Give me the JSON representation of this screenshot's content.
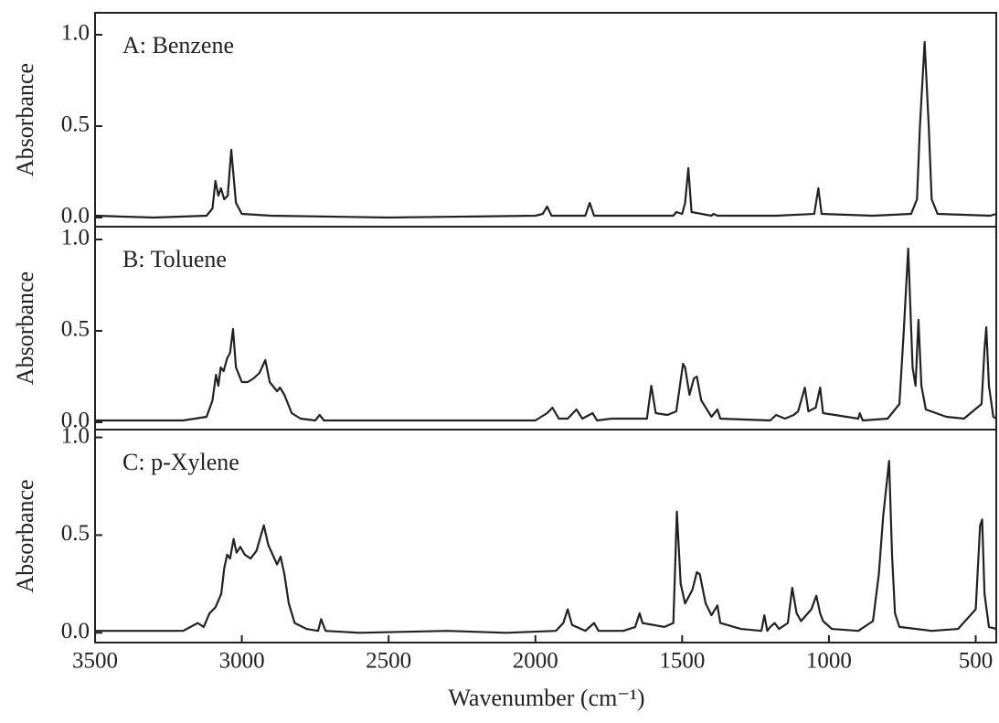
{
  "x_label": "Wavenumber (cm⁻¹)",
  "chart_data": [
    {
      "type": "line",
      "annotation": "A: Benzene",
      "y_label": "Absorbance",
      "color": "#222222",
      "xlim": [
        3500,
        430
      ],
      "ylim": [
        -0.05,
        1.12
      ],
      "yticks": [
        {
          "value": 0,
          "label": "0.0"
        },
        0.5,
        {
          "value": 1,
          "label": "1.0"
        }
      ],
      "x": [
        3500,
        3300,
        3120,
        3100,
        3090,
        3080,
        3071,
        3060,
        3048,
        3036,
        3020,
        3000,
        2900,
        2500,
        2000,
        1975,
        1960,
        1945,
        1830,
        1815,
        1800,
        1530,
        1520,
        1500,
        1490,
        1479,
        1468,
        1400,
        1393,
        1380,
        1180,
        1050,
        1036,
        1025,
        850,
        720,
        700,
        690,
        674,
        660,
        650,
        630,
        450,
        430
      ],
      "values": [
        0.01,
        0.0,
        0.01,
        0.05,
        0.2,
        0.12,
        0.16,
        0.1,
        0.12,
        0.37,
        0.08,
        0.02,
        0.01,
        0.0,
        0.01,
        0.02,
        0.06,
        0.01,
        0.01,
        0.08,
        0.01,
        0.01,
        0.03,
        0.02,
        0.08,
        0.27,
        0.03,
        0.01,
        0.02,
        0.01,
        0.01,
        0.02,
        0.16,
        0.02,
        0.01,
        0.02,
        0.1,
        0.5,
        0.96,
        0.5,
        0.1,
        0.02,
        0.01,
        0.02
      ]
    },
    {
      "type": "line",
      "annotation": "B: Toluene",
      "y_label": "Absorbance",
      "color": "#222222",
      "xlim": [
        3500,
        430
      ],
      "ylim": [
        -0.04,
        1.07
      ],
      "yticks": [
        {
          "value": 0,
          "label": "0.0"
        },
        0.5,
        {
          "value": 1,
          "label": "1.0"
        }
      ],
      "x": [
        3500,
        3200,
        3120,
        3100,
        3088,
        3080,
        3072,
        3062,
        3050,
        3040,
        3030,
        3020,
        3000,
        2980,
        2960,
        2940,
        2920,
        2905,
        2880,
        2870,
        2855,
        2830,
        2800,
        2750,
        2735,
        2720,
        2000,
        1960,
        1942,
        1920,
        1890,
        1860,
        1840,
        1805,
        1790,
        1740,
        1620,
        1605,
        1590,
        1550,
        1520,
        1497,
        1490,
        1475,
        1460,
        1450,
        1435,
        1400,
        1380,
        1370,
        1200,
        1180,
        1150,
        1120,
        1105,
        1082,
        1070,
        1045,
        1030,
        1020,
        900,
        895,
        885,
        800,
        760,
        745,
        730,
        715,
        705,
        695,
        685,
        670,
        600,
        540,
        480,
        470,
        464,
        455,
        440,
        430
      ],
      "values": [
        0.01,
        0.01,
        0.03,
        0.12,
        0.26,
        0.2,
        0.3,
        0.28,
        0.35,
        0.38,
        0.51,
        0.3,
        0.22,
        0.22,
        0.24,
        0.27,
        0.34,
        0.22,
        0.17,
        0.19,
        0.15,
        0.05,
        0.02,
        0.01,
        0.04,
        0.01,
        0.01,
        0.05,
        0.08,
        0.02,
        0.02,
        0.07,
        0.02,
        0.05,
        0.01,
        0.02,
        0.02,
        0.2,
        0.05,
        0.04,
        0.06,
        0.32,
        0.3,
        0.15,
        0.24,
        0.25,
        0.12,
        0.03,
        0.07,
        0.02,
        0.01,
        0.04,
        0.02,
        0.04,
        0.06,
        0.19,
        0.06,
        0.08,
        0.19,
        0.05,
        0.02,
        0.05,
        0.01,
        0.02,
        0.1,
        0.5,
        0.95,
        0.3,
        0.2,
        0.56,
        0.2,
        0.07,
        0.03,
        0.02,
        0.1,
        0.4,
        0.52,
        0.2,
        0.03,
        0.02
      ]
    },
    {
      "type": "line",
      "annotation": "C: p-Xylene",
      "y_label": "Absorbance",
      "color": "#222222",
      "xlim": [
        3500,
        430
      ],
      "ylim": [
        -0.05,
        1.04
      ],
      "xticks": [
        3500,
        3000,
        2500,
        2000,
        1500,
        1000,
        500
      ],
      "yticks": [
        {
          "value": 0,
          "label": "0.0"
        },
        0.5,
        {
          "value": 1,
          "label": "1.0"
        }
      ],
      "x": [
        3500,
        3200,
        3150,
        3130,
        3110,
        3090,
        3070,
        3060,
        3050,
        3040,
        3028,
        3018,
        3005,
        2990,
        2970,
        2950,
        2925,
        2910,
        2880,
        2868,
        2855,
        2840,
        2820,
        2780,
        2740,
        2730,
        2715,
        2600,
        2300,
        2100,
        1930,
        1905,
        1890,
        1875,
        1830,
        1800,
        1785,
        1700,
        1660,
        1645,
        1635,
        1560,
        1530,
        1518,
        1505,
        1490,
        1465,
        1450,
        1440,
        1420,
        1400,
        1380,
        1370,
        1300,
        1230,
        1220,
        1210,
        1200,
        1185,
        1170,
        1140,
        1125,
        1110,
        1095,
        1060,
        1043,
        1030,
        1020,
        990,
        900,
        850,
        830,
        815,
        795,
        785,
        775,
        760,
        650,
        560,
        500,
        485,
        478,
        470,
        455,
        430
      ],
      "values": [
        0.01,
        0.01,
        0.05,
        0.03,
        0.1,
        0.13,
        0.2,
        0.33,
        0.4,
        0.38,
        0.48,
        0.41,
        0.44,
        0.4,
        0.38,
        0.42,
        0.55,
        0.45,
        0.35,
        0.39,
        0.3,
        0.15,
        0.05,
        0.02,
        0.01,
        0.07,
        0.01,
        0.0,
        0.01,
        0.0,
        0.01,
        0.05,
        0.12,
        0.04,
        0.01,
        0.05,
        0.01,
        0.01,
        0.03,
        0.1,
        0.05,
        0.03,
        0.05,
        0.62,
        0.25,
        0.15,
        0.22,
        0.31,
        0.3,
        0.15,
        0.09,
        0.14,
        0.05,
        0.02,
        0.01,
        0.09,
        0.01,
        0.03,
        0.05,
        0.02,
        0.05,
        0.23,
        0.1,
        0.06,
        0.12,
        0.19,
        0.1,
        0.06,
        0.02,
        0.01,
        0.06,
        0.3,
        0.6,
        0.88,
        0.4,
        0.1,
        0.03,
        0.01,
        0.02,
        0.12,
        0.55,
        0.58,
        0.2,
        0.03,
        0.02
      ]
    }
  ]
}
